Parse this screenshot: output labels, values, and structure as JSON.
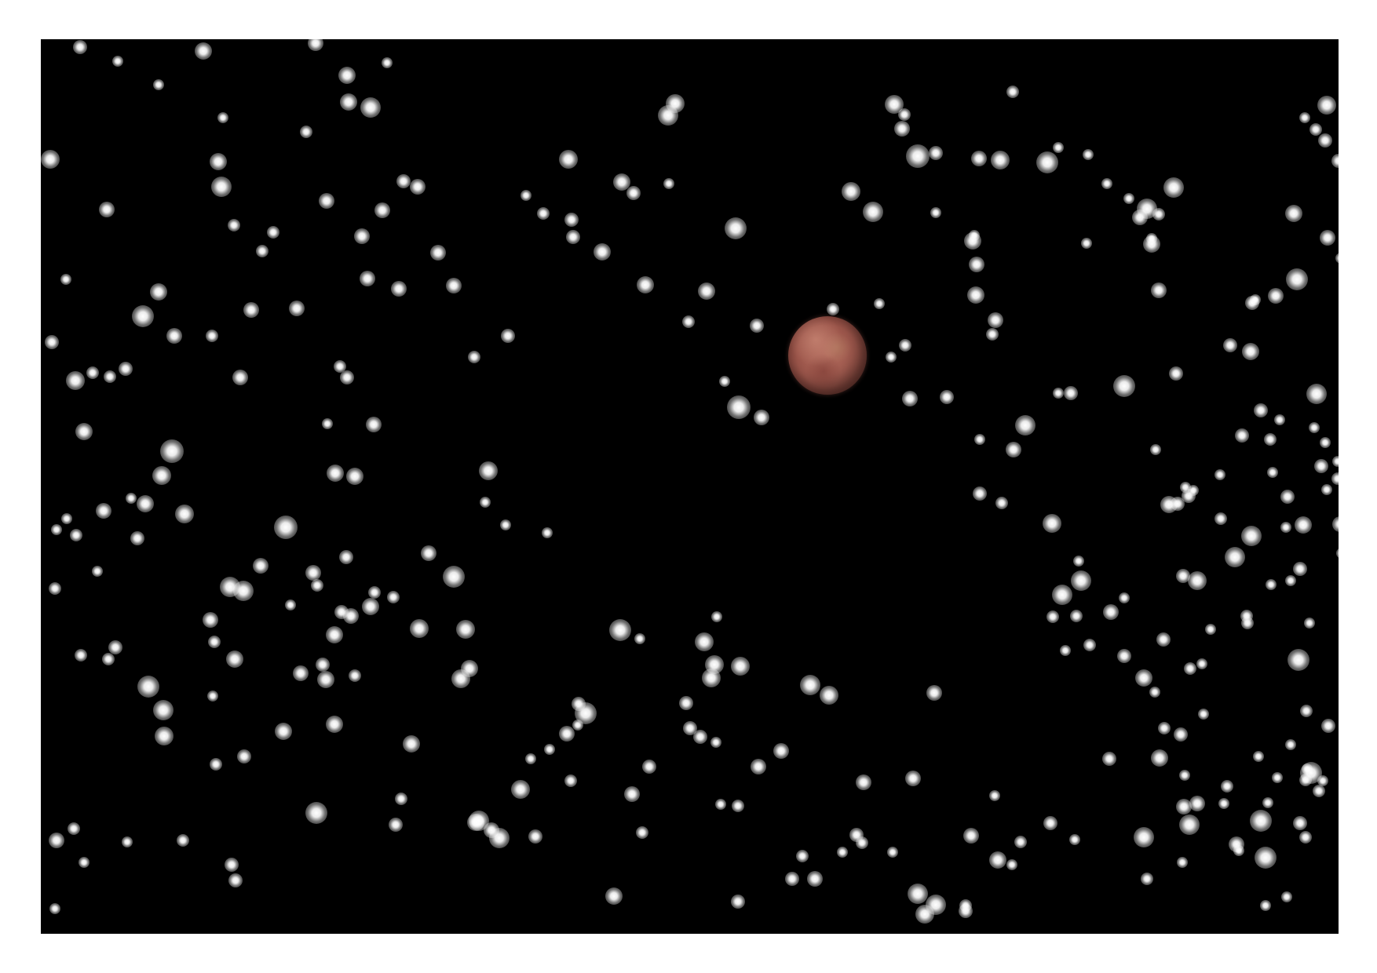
{
  "scene": {
    "background_color": "#000000",
    "frame_color": "#ffffff",
    "star_color": "#ffffff",
    "planet_color": "#a55f52",
    "planet_icon": "planet-mars-icon"
  }
}
